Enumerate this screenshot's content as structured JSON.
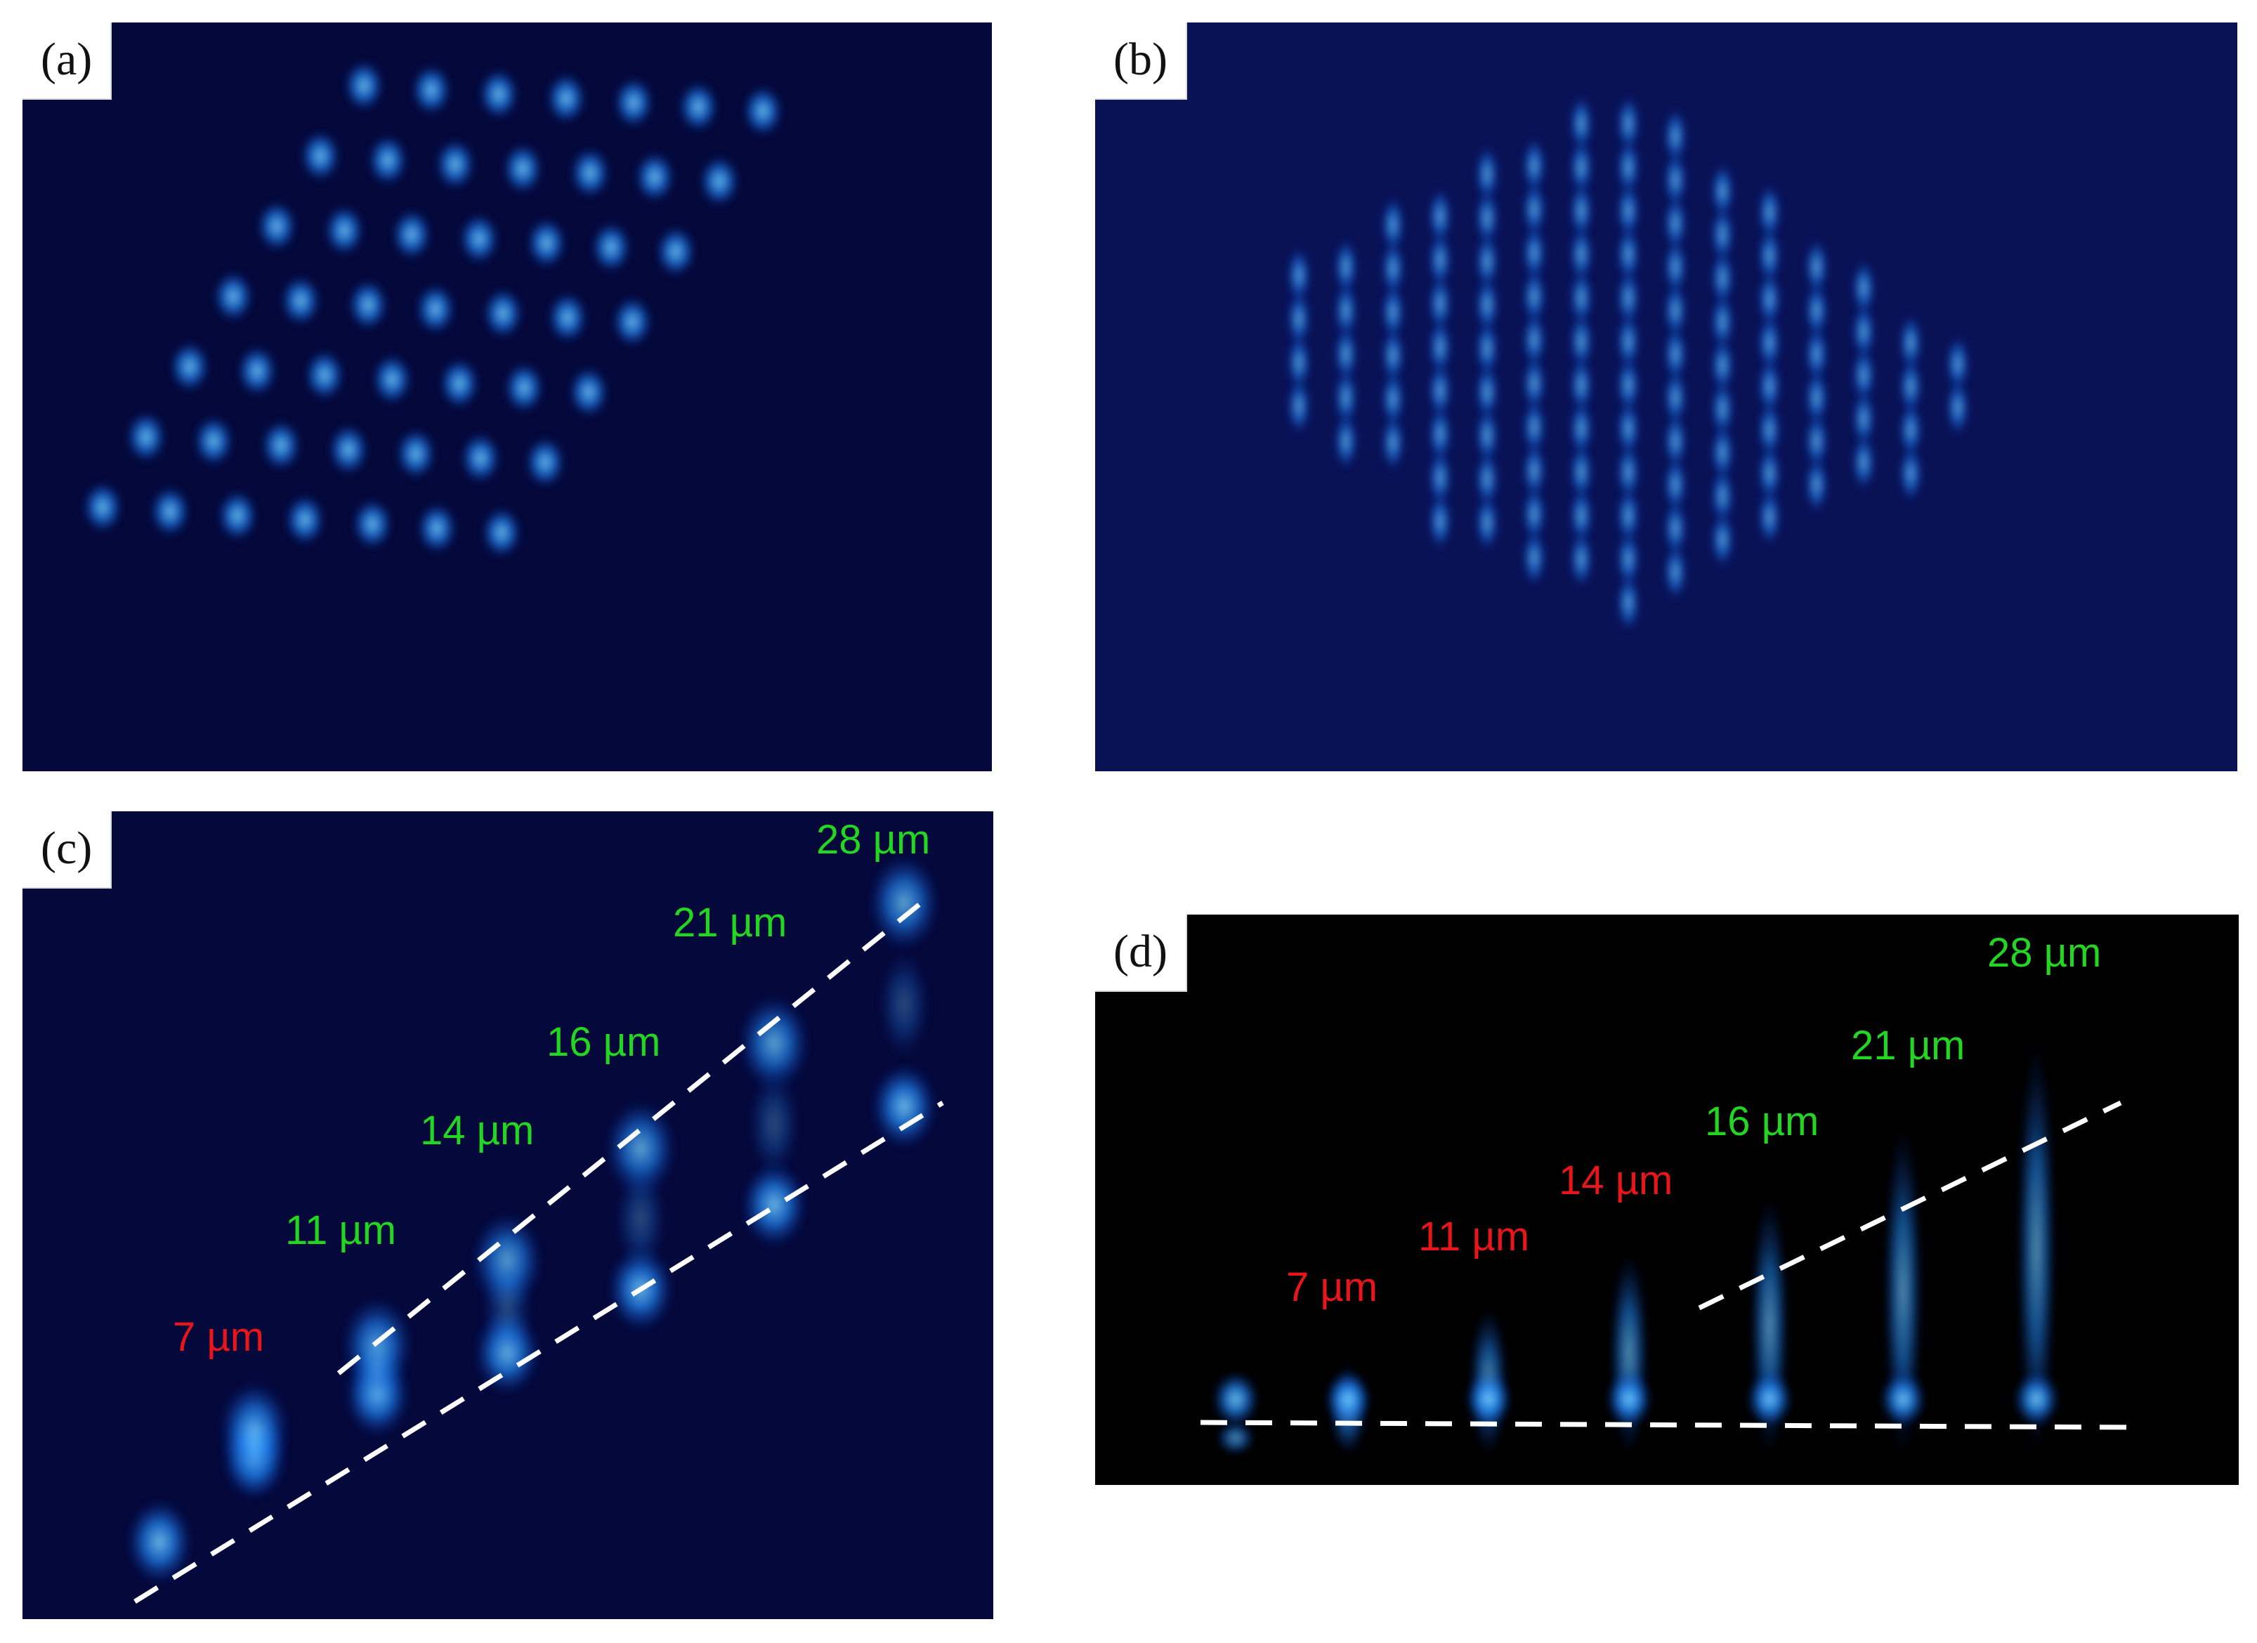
{
  "panels": [
    {
      "id": "a",
      "tag": "(a)",
      "background": "#05083a"
    },
    {
      "id": "b",
      "tag": "(b)",
      "background": "#0a1256"
    },
    {
      "id": "c",
      "tag": "(c)",
      "background": "#05083a",
      "labels": [
        {
          "text": "7 µm",
          "color": "#e8151b"
        },
        {
          "text": "11 µm",
          "color": "#22d622"
        },
        {
          "text": "14 µm",
          "color": "#22d622"
        },
        {
          "text": "16 µm",
          "color": "#22d622"
        },
        {
          "text": "21 µm",
          "color": "#22d622"
        },
        {
          "text": "28 µm",
          "color": "#22d622"
        }
      ]
    },
    {
      "id": "d",
      "tag": "(d)",
      "background": "#000000",
      "labels": [
        {
          "text": "7 µm",
          "color": "#e8151b"
        },
        {
          "text": "11 µm",
          "color": "#e8151b"
        },
        {
          "text": "14 µm",
          "color": "#e8151b"
        },
        {
          "text": "16 µm",
          "color": "#22d622"
        },
        {
          "text": "21 µm",
          "color": "#22d622"
        },
        {
          "text": "28 µm",
          "color": "#22d622"
        }
      ]
    }
  ],
  "colors": {
    "spot_core": "#7fd4ff",
    "spot_mid": "#1f8cff",
    "dashed_line": "#ffffff"
  }
}
